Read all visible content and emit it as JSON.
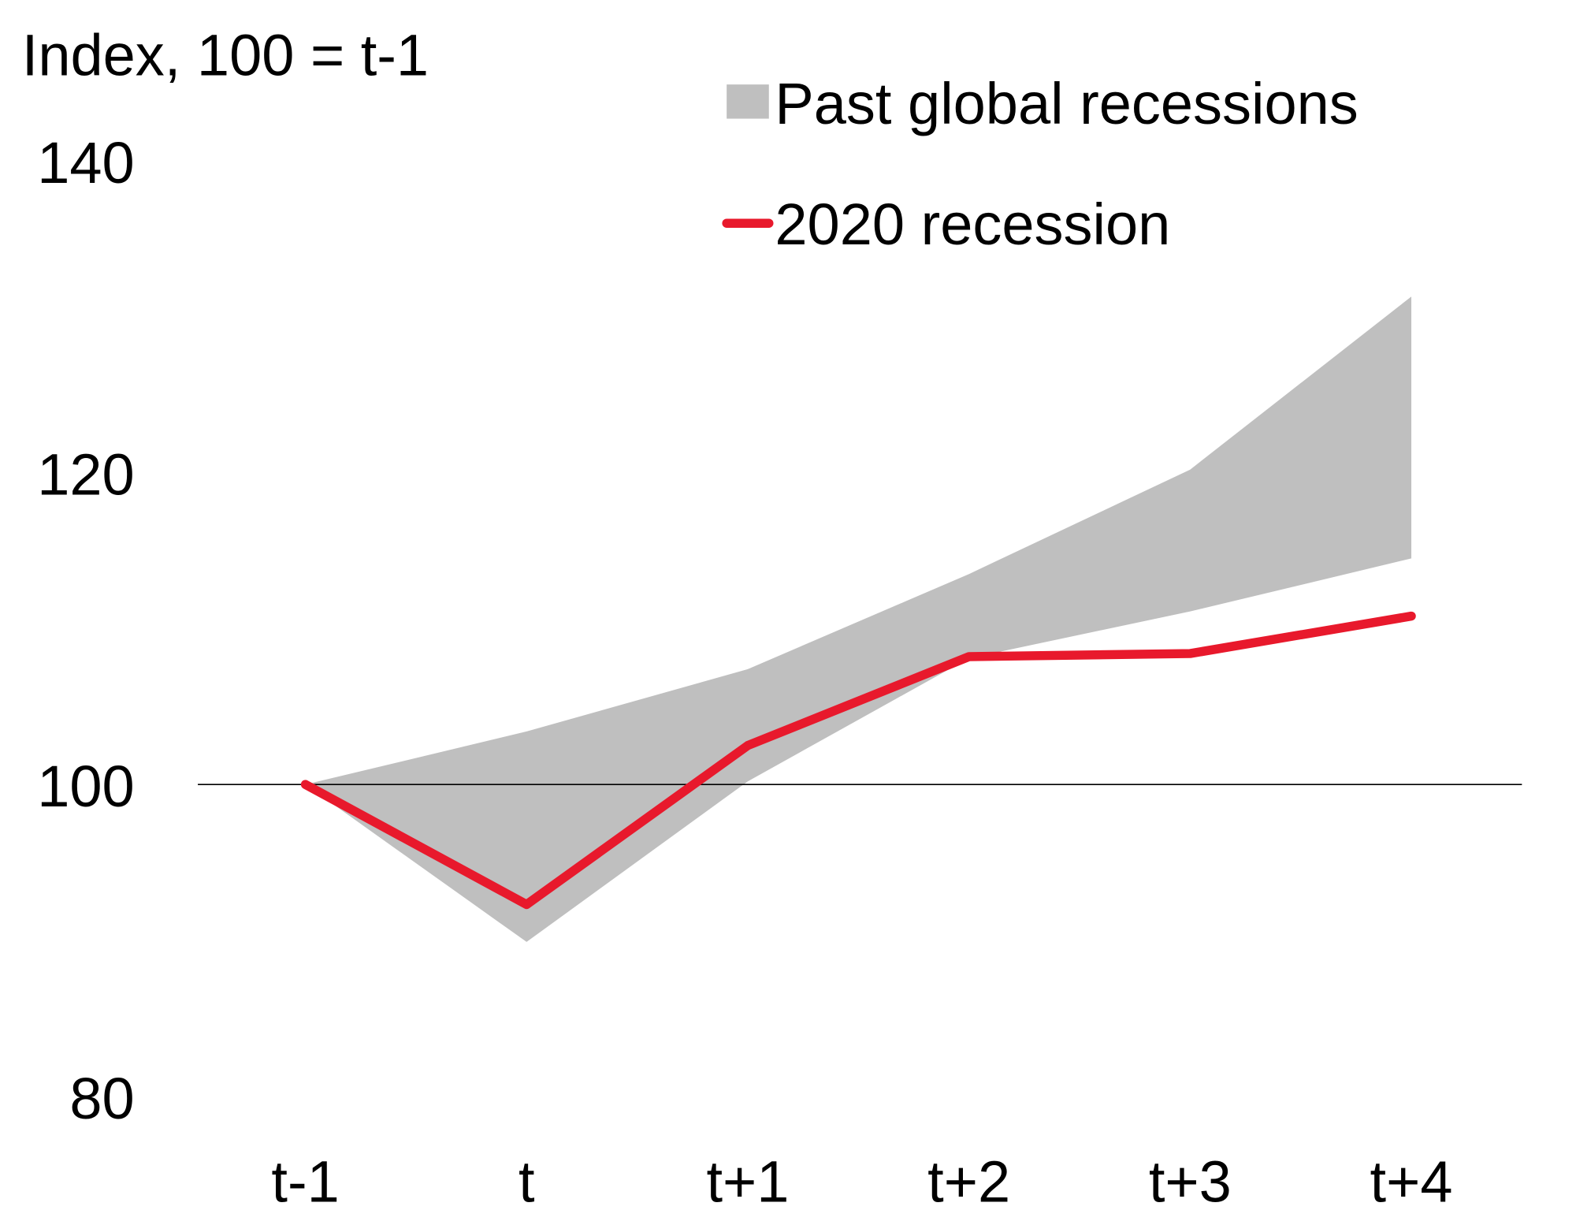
{
  "chart_data": {
    "type": "line",
    "title": "",
    "ylabel": "Index, 100 = t-1",
    "xlabel": "",
    "categories": [
      "t-1",
      "t",
      "t+1",
      "t+2",
      "t+3",
      "t+4"
    ],
    "ylim": [
      80,
      140
    ],
    "yticks": [
      80,
      100,
      120,
      140
    ],
    "reference_line": 100,
    "grid": false,
    "legend_position": "top-right",
    "band": {
      "name": "Past global recessions",
      "color": "#bfbfbf",
      "lower": [
        100,
        89.9,
        100.2,
        108.1,
        111.1,
        114.5
      ],
      "upper": [
        100,
        103.4,
        107.4,
        113.5,
        120.2,
        131.3
      ]
    },
    "series": [
      {
        "name": "2020 recession",
        "color": "#e8192c",
        "values": [
          100,
          92.3,
          102.5,
          108.2,
          108.4,
          110.8
        ]
      }
    ]
  }
}
